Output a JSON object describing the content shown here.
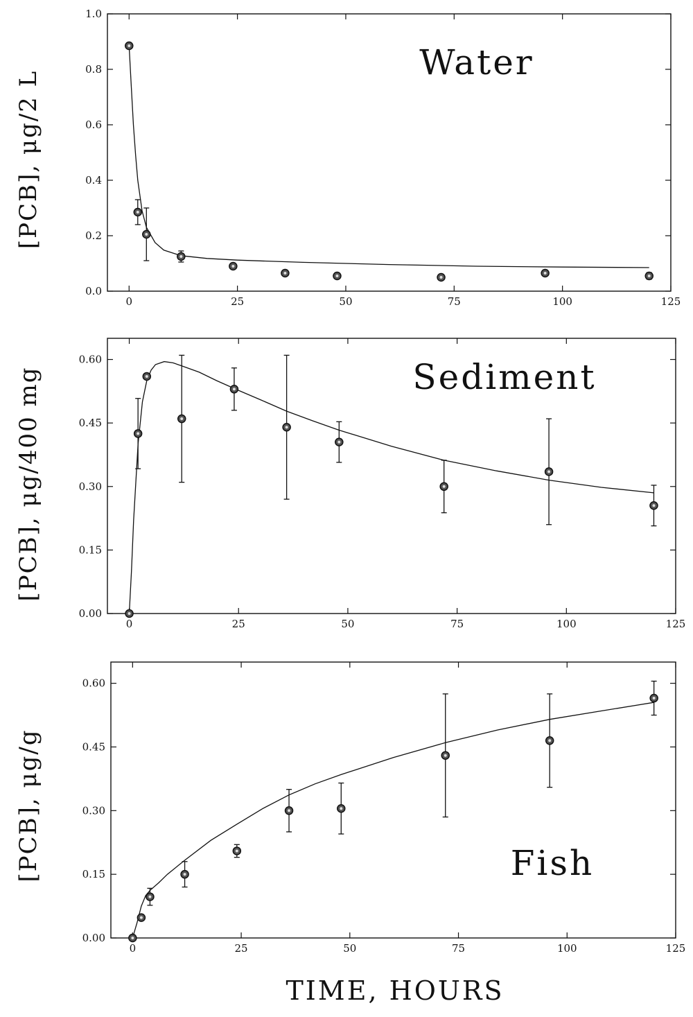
{
  "x_axis_title": "TIME, HOURS",
  "chart_data": [
    {
      "type": "scatter",
      "panel_label": "Water",
      "ylabel": "[PCB], μg/2 L",
      "xlim": [
        -5,
        125
      ],
      "ylim": [
        0,
        1.0
      ],
      "xticks": [
        0,
        25,
        50,
        75,
        100,
        125
      ],
      "xtick_labels": [
        "0",
        "25",
        "50",
        "75",
        "100",
        "125"
      ],
      "yticks": [
        0,
        0.2,
        0.4,
        0.6,
        0.8,
        1.0
      ],
      "ytick_labels": [
        "0.0",
        "0.2",
        "0.4",
        "0.6",
        "0.8",
        "1.0"
      ],
      "grid": false,
      "points": [
        {
          "x": 0,
          "y": 0.885,
          "err": 0
        },
        {
          "x": 2,
          "y": 0.285,
          "err": 0.045
        },
        {
          "x": 4,
          "y": 0.205,
          "err": 0.095
        },
        {
          "x": 12,
          "y": 0.125,
          "err": 0.02
        },
        {
          "x": 24,
          "y": 0.09,
          "err": 0
        },
        {
          "x": 36,
          "y": 0.065,
          "err": 0
        },
        {
          "x": 48,
          "y": 0.055,
          "err": 0
        },
        {
          "x": 72,
          "y": 0.05,
          "err": 0
        },
        {
          "x": 96,
          "y": 0.065,
          "err": 0.01
        },
        {
          "x": 120,
          "y": 0.055,
          "err": 0.012
        }
      ],
      "fit_curve": [
        [
          0,
          0.885
        ],
        [
          0.5,
          0.74
        ],
        [
          1,
          0.6
        ],
        [
          1.5,
          0.49
        ],
        [
          2,
          0.4
        ],
        [
          3,
          0.29
        ],
        [
          4,
          0.23
        ],
        [
          6,
          0.175
        ],
        [
          8,
          0.148
        ],
        [
          12,
          0.128
        ],
        [
          18,
          0.118
        ],
        [
          25,
          0.112
        ],
        [
          40,
          0.104
        ],
        [
          60,
          0.096
        ],
        [
          80,
          0.09
        ],
        [
          100,
          0.087
        ],
        [
          120,
          0.085
        ]
      ]
    },
    {
      "type": "scatter",
      "panel_label": "Sediment",
      "ylabel": "[PCB], μg/400 mg",
      "xlim": [
        -5,
        125
      ],
      "ylim": [
        0,
        0.65
      ],
      "xticks": [
        0,
        25,
        50,
        75,
        100,
        125
      ],
      "xtick_labels": [
        "0",
        "25",
        "50",
        "75",
        "100",
        "125"
      ],
      "yticks": [
        0,
        0.15,
        0.3,
        0.45,
        0.6
      ],
      "ytick_labels": [
        "0.00",
        "0.15",
        "0.30",
        "0.45",
        "0.60"
      ],
      "grid": false,
      "points": [
        {
          "x": 0,
          "y": 0.0,
          "err": 0
        },
        {
          "x": 2,
          "y": 0.425,
          "err": 0.083
        },
        {
          "x": 4,
          "y": 0.56,
          "err": 0
        },
        {
          "x": 12,
          "y": 0.46,
          "err": 0.15
        },
        {
          "x": 24,
          "y": 0.53,
          "err": 0.05
        },
        {
          "x": 36,
          "y": 0.44,
          "err": 0.17
        },
        {
          "x": 48,
          "y": 0.405,
          "err": 0.048
        },
        {
          "x": 72,
          "y": 0.3,
          "err": 0.062
        },
        {
          "x": 96,
          "y": 0.335,
          "err": 0.125
        },
        {
          "x": 120,
          "y": 0.255,
          "err": 0.048
        }
      ],
      "fit_curve": [
        [
          0,
          0
        ],
        [
          0.5,
          0.1
        ],
        [
          1,
          0.22
        ],
        [
          2,
          0.4
        ],
        [
          3,
          0.5
        ],
        [
          4,
          0.55
        ],
        [
          5,
          0.575
        ],
        [
          6,
          0.588
        ],
        [
          8,
          0.595
        ],
        [
          10,
          0.592
        ],
        [
          12,
          0.585
        ],
        [
          16,
          0.57
        ],
        [
          20,
          0.55
        ],
        [
          25,
          0.527
        ],
        [
          30,
          0.505
        ],
        [
          36,
          0.478
        ],
        [
          42,
          0.455
        ],
        [
          48,
          0.433
        ],
        [
          60,
          0.395
        ],
        [
          72,
          0.362
        ],
        [
          84,
          0.337
        ],
        [
          96,
          0.315
        ],
        [
          108,
          0.298
        ],
        [
          120,
          0.285
        ]
      ]
    },
    {
      "type": "scatter",
      "panel_label": "Fish",
      "ylabel": "[PCB], μg/g",
      "xlim": [
        -5,
        125
      ],
      "ylim": [
        0,
        0.65
      ],
      "xticks": [
        0,
        25,
        50,
        75,
        100,
        125
      ],
      "xtick_labels": [
        "0",
        "25",
        "50",
        "75",
        "100",
        "125"
      ],
      "yticks": [
        0,
        0.15,
        0.3,
        0.45,
        0.6
      ],
      "ytick_labels": [
        "0.00",
        "0.15",
        "0.30",
        "0.45",
        "0.60"
      ],
      "grid": false,
      "points": [
        {
          "x": 0,
          "y": 0.0,
          "err": 0
        },
        {
          "x": 2,
          "y": 0.048,
          "err": 0
        },
        {
          "x": 4,
          "y": 0.097,
          "err": 0.02
        },
        {
          "x": 12,
          "y": 0.15,
          "err": 0.03
        },
        {
          "x": 24,
          "y": 0.205,
          "err": 0.015
        },
        {
          "x": 36,
          "y": 0.3,
          "err": 0.05
        },
        {
          "x": 48,
          "y": 0.305,
          "err": 0.06
        },
        {
          "x": 72,
          "y": 0.43,
          "err": 0.145
        },
        {
          "x": 96,
          "y": 0.465,
          "err": 0.11
        },
        {
          "x": 120,
          "y": 0.565,
          "err": 0.04
        }
      ],
      "fit_curve": [
        [
          0,
          0
        ],
        [
          1,
          0.035
        ],
        [
          2,
          0.075
        ],
        [
          3,
          0.1
        ],
        [
          4,
          0.112
        ],
        [
          6,
          0.13
        ],
        [
          8,
          0.15
        ],
        [
          12,
          0.183
        ],
        [
          18,
          0.23
        ],
        [
          24,
          0.268
        ],
        [
          30,
          0.305
        ],
        [
          36,
          0.337
        ],
        [
          42,
          0.363
        ],
        [
          48,
          0.385
        ],
        [
          60,
          0.425
        ],
        [
          72,
          0.46
        ],
        [
          84,
          0.49
        ],
        [
          96,
          0.515
        ],
        [
          108,
          0.535
        ],
        [
          120,
          0.555
        ]
      ]
    }
  ]
}
